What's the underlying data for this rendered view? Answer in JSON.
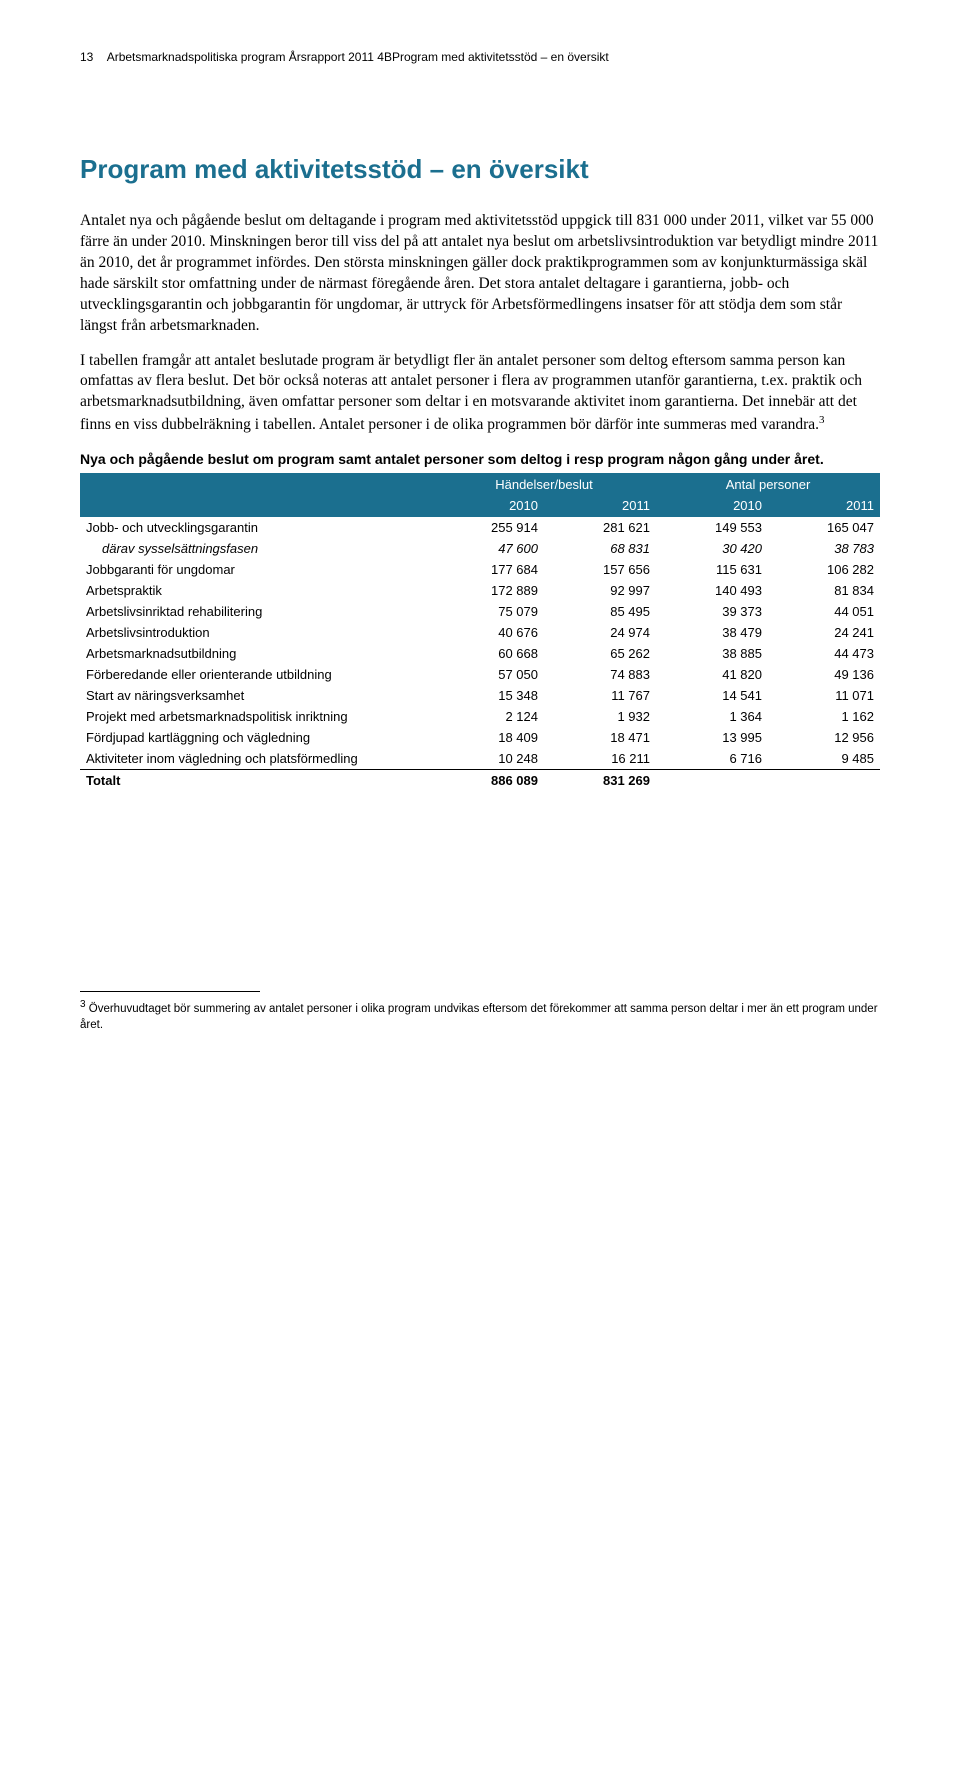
{
  "header": {
    "page_num": "13",
    "text": "Arbetsmarknadspolitiska program Årsrapport 2011 4BProgram med aktivitetsstöd – en översikt"
  },
  "section_title": "Program med aktivitetsstöd – en översikt",
  "section_title_color": "#1b6f8f",
  "paragraphs": {
    "p1": "Antalet nya och pågående beslut om deltagande i program med aktivitetsstöd uppgick till 831 000 under 2011, vilket var 55 000 färre än under 2010. Minskningen beror till viss del på att antalet nya beslut om arbetslivsintroduktion var betydligt mindre 2011 än 2010, det år programmet infördes. Den största minskningen gäller dock praktikprogrammen som av konjunkturmässiga skäl hade särskilt stor omfattning under de närmast föregående åren. Det stora antalet deltagare i garantierna, jobb- och utvecklingsgarantin och jobbgarantin för ungdomar, är uttryck för Arbetsförmedlingens insatser för att stödja dem som står längst från arbetsmarknaden.",
    "p2a": "I tabellen framgår att antalet beslutade program är betydligt fler än antalet personer som deltog eftersom samma person kan omfattas av flera beslut. Det bör också noteras att antalet personer i flera av programmen utanför garantierna, t.ex. praktik och arbetsmarknadsutbildning, även omfattar personer som deltar i en motsvarande aktivitet inom garantierna. Det innebär att det finns en viss dubbelräkning i tabellen. Antalet personer i de olika programmen bör därför inte summeras med varandra.",
    "p2_ref": "3"
  },
  "table": {
    "caption": "Nya och pågående beslut om program samt antalet personer som deltog i resp program någon gång under året.",
    "header_bg": "#1b6f8f",
    "group_headers": [
      "Händelser/beslut",
      "Antal personer"
    ],
    "year_headers": [
      "2010",
      "2011",
      "2010",
      "2011"
    ],
    "rows": [
      {
        "label": "Jobb- och utvecklingsgarantin",
        "cells": [
          "255 914",
          "281 621",
          "149 553",
          "165 047"
        ]
      },
      {
        "label": "därav sysselsättningsfasen",
        "italic": true,
        "indent": true,
        "cells": [
          "47 600",
          "68 831",
          "30 420",
          "38 783"
        ]
      },
      {
        "label": "Jobbgaranti för ungdomar",
        "cells": [
          "177 684",
          "157 656",
          "115 631",
          "106 282"
        ]
      },
      {
        "label": "Arbetspraktik",
        "cells": [
          "172 889",
          "92 997",
          "140 493",
          "81 834"
        ]
      },
      {
        "label": "Arbetslivsinriktad rehabilitering",
        "cells": [
          "75 079",
          "85 495",
          "39 373",
          "44 051"
        ]
      },
      {
        "label": "Arbetslivsintroduktion",
        "cells": [
          "40 676",
          "24 974",
          "38 479",
          "24 241"
        ]
      },
      {
        "label": "Arbetsmarknadsutbildning",
        "cells": [
          "60 668",
          "65 262",
          "38 885",
          "44 473"
        ]
      },
      {
        "label": "Förberedande eller orienterande utbildning",
        "cells": [
          "57 050",
          "74 883",
          "41 820",
          "49 136"
        ]
      },
      {
        "label": "Start av näringsverksamhet",
        "cells": [
          "15 348",
          "11 767",
          "14 541",
          "11 071"
        ]
      },
      {
        "label": "Projekt med arbetsmarknadspolitisk inriktning",
        "cells": [
          "2 124",
          "1 932",
          "1 364",
          "1 162"
        ]
      },
      {
        "label": "Fördjupad kartläggning och vägledning",
        "cells": [
          "18 409",
          "18 471",
          "13 995",
          "12 956"
        ]
      },
      {
        "label": "Aktiviteter inom vägledning och platsförmedling",
        "cells": [
          "10 248",
          "16 211",
          "6 716",
          "9 485"
        ]
      }
    ],
    "total": {
      "label": "Totalt",
      "cells": [
        "886 089",
        "831 269",
        "",
        ""
      ]
    },
    "col_widths": [
      "44%",
      "14%",
      "14%",
      "14%",
      "14%"
    ]
  },
  "footnote": {
    "num": "3",
    "text": "Överhuvudtaget bör  summering av antalet personer i olika program undvikas eftersom det förekommer att samma person deltar i mer än ett program under året."
  }
}
